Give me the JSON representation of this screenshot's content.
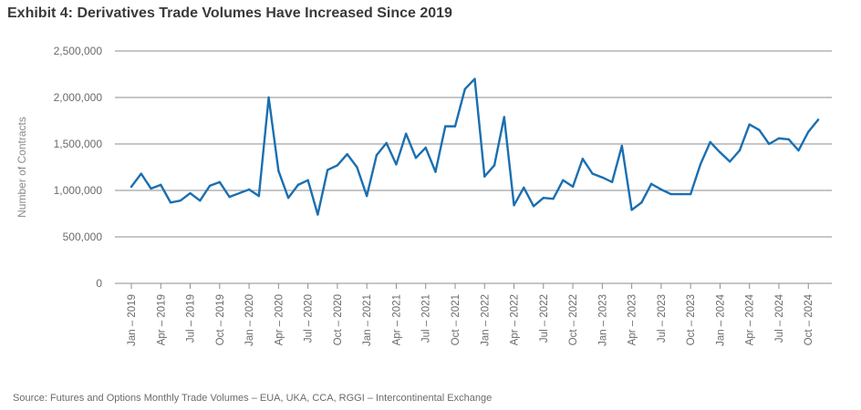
{
  "title": "Exhibit 4: Derivatives Trade Volumes Have Increased Since 2019",
  "source": "Source: Futures and Options Monthly Trade Volumes – EUA, UKA, CCA, RGGI – Intercontinental Exchange",
  "colors": {
    "line": "#1a6fb0",
    "grid": "#8c8c8c",
    "text": "#6b6b6b"
  },
  "chart_data": {
    "type": "line",
    "title": "Exhibit 4: Derivatives Trade Volumes Have Increased Since 2019",
    "xlabel": "",
    "ylabel": "Number of Contracts",
    "ylim": [
      0,
      2500000
    ],
    "grid": true,
    "yticks": [
      {
        "value": 0,
        "label": "0"
      },
      {
        "value": 500000,
        "label": "500,000"
      },
      {
        "value": 1000000,
        "label": "1,000,000"
      },
      {
        "value": 1500000,
        "label": "1,500,000"
      },
      {
        "value": 2000000,
        "label": "2,000,000"
      },
      {
        "value": 2500000,
        "label": "2,500,000"
      }
    ],
    "xticks": [
      {
        "index": 0,
        "label": "Jan – 2019"
      },
      {
        "index": 3,
        "label": "Apr – 2019"
      },
      {
        "index": 6,
        "label": "Jul – 2019"
      },
      {
        "index": 9,
        "label": "Oct – 2019"
      },
      {
        "index": 12,
        "label": "Jan – 2020"
      },
      {
        "index": 15,
        "label": "Apr – 2020"
      },
      {
        "index": 18,
        "label": "Jul – 2020"
      },
      {
        "index": 21,
        "label": "Oct – 2020"
      },
      {
        "index": 24,
        "label": "Jan – 2021"
      },
      {
        "index": 27,
        "label": "Apr – 2021"
      },
      {
        "index": 30,
        "label": "Jul – 2021"
      },
      {
        "index": 33,
        "label": "Oct – 2021"
      },
      {
        "index": 36,
        "label": "Jan – 2022"
      },
      {
        "index": 39,
        "label": "Apr – 2022"
      },
      {
        "index": 42,
        "label": "Jul – 2022"
      },
      {
        "index": 45,
        "label": "Oct – 2022"
      },
      {
        "index": 48,
        "label": "Jan – 2023"
      },
      {
        "index": 51,
        "label": "Apr – 2023"
      },
      {
        "index": 54,
        "label": "Jul – 2023"
      },
      {
        "index": 57,
        "label": "Oct – 2023"
      },
      {
        "index": 60,
        "label": "Jan – 2024"
      },
      {
        "index": 63,
        "label": "Apr – 2024"
      },
      {
        "index": 66,
        "label": "Jul – 2024"
      },
      {
        "index": 69,
        "label": "Oct – 2024"
      }
    ],
    "series": [
      {
        "values": [
          1040000,
          1180000,
          1020000,
          1060000,
          870000,
          890000,
          970000,
          890000,
          1050000,
          1090000,
          930000,
          970000,
          1010000,
          940000,
          2000000,
          1210000,
          920000,
          1060000,
          1110000,
          740000,
          1220000,
          1270000,
          1390000,
          1250000,
          940000,
          1380000,
          1510000,
          1280000,
          1610000,
          1350000,
          1460000,
          1200000,
          1690000,
          1690000,
          2090000,
          2200000,
          1150000,
          1270000,
          1790000,
          840000,
          1030000,
          830000,
          920000,
          910000,
          1110000,
          1040000,
          1340000,
          1180000,
          1140000,
          1090000,
          1480000,
          790000,
          870000,
          1070000,
          1010000,
          960000,
          960000,
          960000,
          1280000,
          1520000,
          1410000,
          1310000,
          1430000,
          1710000,
          1650000,
          1500000,
          1560000,
          1550000,
          1430000,
          1630000,
          1760000
        ]
      }
    ]
  }
}
